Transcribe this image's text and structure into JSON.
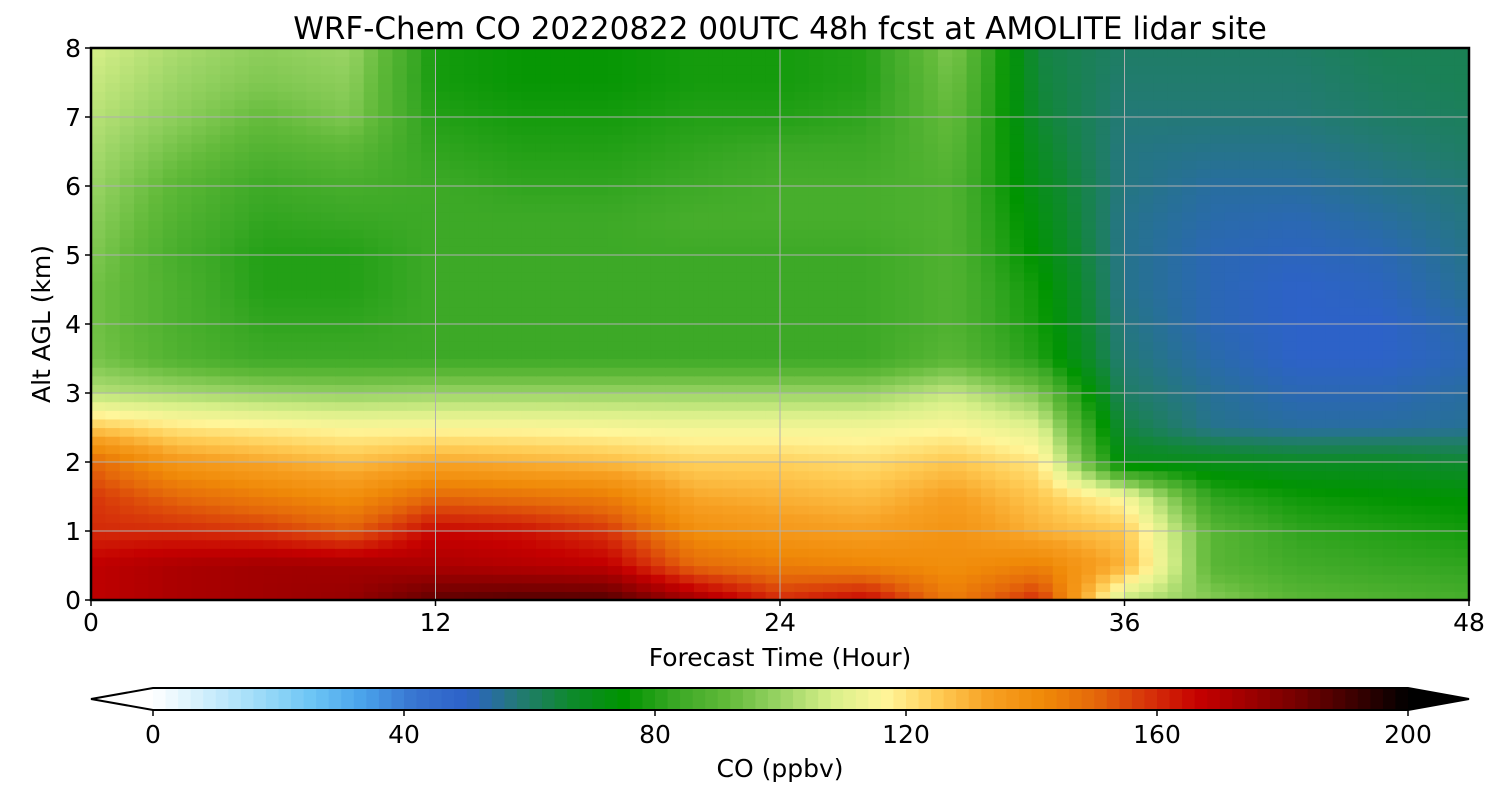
{
  "chart_data": {
    "type": "heatmap",
    "title": "WRF-Chem CO  20220822 00UTC 48h fcst at AMOLITE lidar site",
    "xlabel": "Forecast Time (Hour)",
    "ylabel": "Alt AGL (km)",
    "xlim": [
      0,
      48
    ],
    "ylim": [
      0,
      8
    ],
    "x_ticks": [
      "0",
      "12",
      "24",
      "36",
      "48"
    ],
    "y_ticks": [
      "0",
      "1",
      "2",
      "3",
      "4",
      "5",
      "6",
      "7",
      "8"
    ],
    "grid": true,
    "x": [
      0,
      3,
      6,
      9,
      12,
      15,
      18,
      21,
      24,
      27,
      30,
      33,
      36,
      39,
      42,
      45,
      48
    ],
    "y": [
      0,
      0.5,
      1,
      1.5,
      2,
      2.5,
      3,
      3.5,
      4,
      4.5,
      5,
      5.5,
      6,
      6.5,
      7,
      7.5,
      8
    ],
    "z": [
      [
        168,
        172,
        174,
        176,
        186,
        188,
        188,
        174,
        160,
        166,
        145,
        160,
        105,
        97,
        90,
        88,
        86
      ],
      [
        168,
        172,
        174,
        174,
        172,
        170,
        168,
        150,
        145,
        143,
        140,
        144,
        130,
        90,
        85,
        83,
        82
      ],
      [
        160,
        160,
        158,
        152,
        166,
        164,
        158,
        140,
        136,
        134,
        138,
        130,
        126,
        90,
        82,
        80,
        78
      ],
      [
        158,
        150,
        145,
        140,
        150,
        148,
        145,
        132,
        130,
        128,
        134,
        126,
        115,
        82,
        77,
        75,
        74
      ],
      [
        150,
        136,
        132,
        128,
        132,
        130,
        128,
        124,
        124,
        122,
        126,
        120,
        70,
        70,
        68,
        68,
        66
      ],
      [
        126,
        120,
        118,
        116,
        116,
        116,
        115,
        114,
        114,
        114,
        116,
        110,
        64,
        56,
        54,
        54,
        55
      ],
      [
        104,
        102,
        100,
        99,
        100,
        100,
        100,
        100,
        100,
        100,
        106,
        96,
        60,
        55,
        52,
        52,
        54
      ],
      [
        95,
        88,
        84,
        84,
        84,
        84,
        84,
        84,
        84,
        84,
        90,
        80,
        58,
        53,
        50,
        50,
        52
      ],
      [
        94,
        87,
        82,
        82,
        84,
        84,
        84,
        84,
        84,
        84,
        88,
        78,
        57,
        52,
        50,
        50,
        53
      ],
      [
        94,
        87,
        80,
        80,
        84,
        84,
        84,
        84,
        84,
        84,
        88,
        77,
        56,
        52,
        50,
        51,
        55
      ],
      [
        96,
        86,
        80,
        80,
        84,
        84,
        84,
        84,
        84,
        84,
        88,
        74,
        56,
        52,
        51,
        52,
        56
      ],
      [
        98,
        88,
        82,
        83,
        84,
        84,
        84,
        86,
        86,
        86,
        88,
        72,
        56,
        53,
        52,
        54,
        57
      ],
      [
        100,
        90,
        84,
        86,
        84,
        82,
        82,
        84,
        86,
        86,
        88,
        70,
        57,
        54,
        54,
        56,
        58
      ],
      [
        102,
        94,
        88,
        90,
        82,
        80,
        80,
        82,
        84,
        84,
        90,
        68,
        57,
        56,
        56,
        58,
        60
      ],
      [
        104,
        98,
        92,
        96,
        80,
        78,
        78,
        80,
        80,
        82,
        92,
        66,
        58,
        58,
        58,
        60,
        61
      ],
      [
        106,
        100,
        96,
        98,
        78,
        76,
        76,
        78,
        78,
        80,
        94,
        65,
        59,
        59,
        59,
        61,
        62
      ],
      [
        108,
        102,
        98,
        100,
        78,
        76,
        76,
        78,
        78,
        80,
        96,
        64,
        60,
        60,
        60,
        62,
        62
      ]
    ],
    "colorbar": {
      "label": "CO  (ppbv)",
      "min": 0,
      "max": 200,
      "ticks": [
        "0",
        "40",
        "80",
        "120",
        "160",
        "200"
      ],
      "extend": "both",
      "colors": [
        "#ffffff",
        "#cfeefc",
        "#9fdcf8",
        "#6ec6f5",
        "#4aa3eb",
        "#3874d0",
        "#2d62c8",
        "#237a74",
        "#0e8a2c",
        "#009400",
        "#3aa825",
        "#62ba3a",
        "#9ad465",
        "#d9f08a",
        "#fff69a",
        "#ffcc55",
        "#f7a022",
        "#f08a08",
        "#e5690a",
        "#d7340a",
        "#c50000",
        "#9c0000",
        "#6f0000",
        "#3a0000",
        "#000000"
      ]
    }
  }
}
